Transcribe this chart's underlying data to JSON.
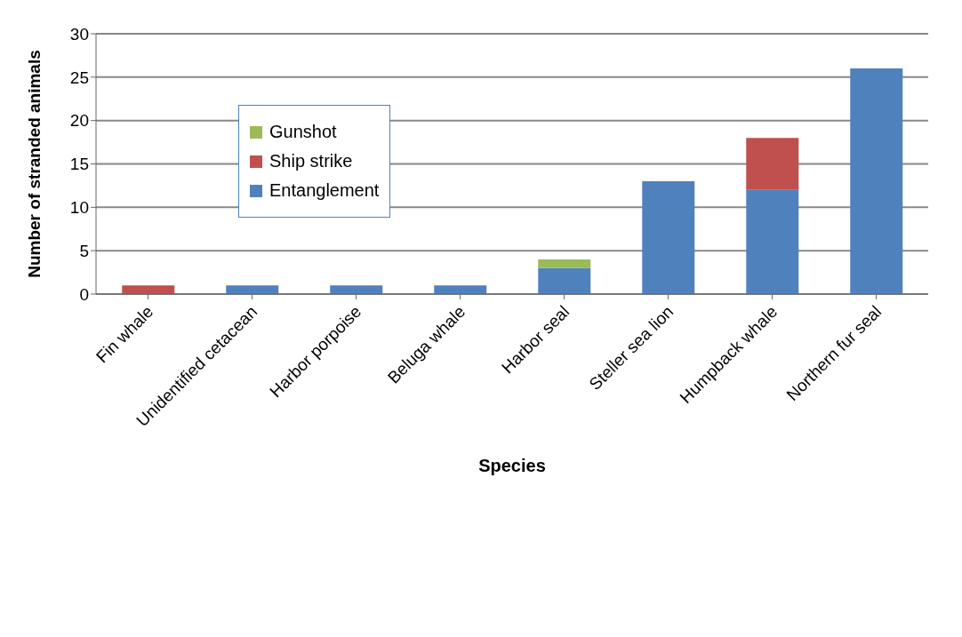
{
  "chart_data": {
    "type": "bar",
    "xlabel": "Species",
    "ylabel": "Number of stranded animals",
    "categories": [
      "Fin whale",
      "Unidentified cetacean",
      "Harbor porpoise",
      "Beluga whale",
      "Harbor seal",
      "Steller sea lion",
      "Humpback whale",
      "Northern fur seal"
    ],
    "series": [
      {
        "name": "Entanglement",
        "color": "#4f81bd",
        "values": [
          null,
          1,
          1,
          1,
          3,
          13,
          12,
          26
        ]
      },
      {
        "name": "Ship strike",
        "color": "#c0504d",
        "values": [
          1,
          null,
          null,
          null,
          null,
          null,
          6,
          null
        ]
      },
      {
        "name": "Gunshot",
        "color": "#9bbb59",
        "values": [
          null,
          null,
          null,
          null,
          1,
          null,
          null,
          null
        ]
      }
    ],
    "stacked": true,
    "ylim": [
      0,
      30
    ],
    "yticks": [
      0,
      5,
      10,
      15,
      20,
      25,
      30
    ],
    "grid": "y",
    "legend": "top left"
  }
}
